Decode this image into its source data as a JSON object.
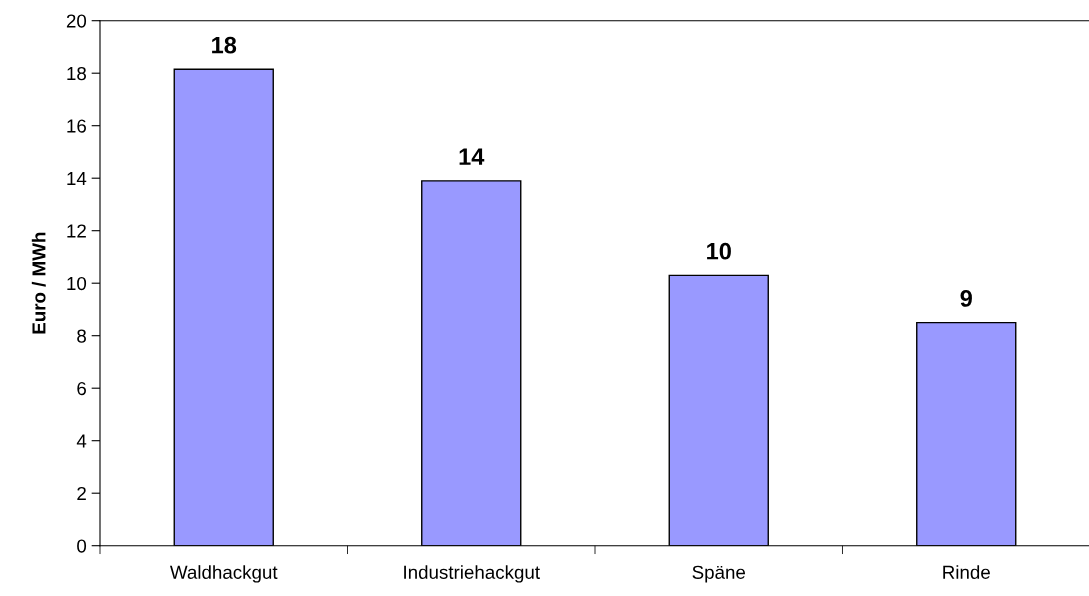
{
  "chart_data": {
    "type": "bar",
    "ylabel": "Euro / MWh",
    "categories": [
      "Waldhackgut",
      "Industriehackgut",
      "Späne",
      "Rinde"
    ],
    "values": [
      18.15,
      13.9,
      10.3,
      8.5
    ],
    "value_labels": [
      "18",
      "14",
      "10",
      "9"
    ],
    "color": "#9999ff",
    "ylim": [
      0,
      20
    ],
    "yticks": [
      0,
      2,
      4,
      6,
      8,
      10,
      12,
      14,
      16,
      18,
      20
    ],
    "grid": false,
    "legend": false
  }
}
